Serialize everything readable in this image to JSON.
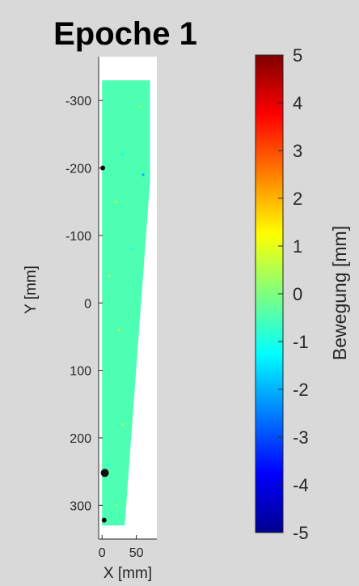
{
  "chart_data": {
    "type": "scatter",
    "title": "Epoche 1",
    "xlabel": "X [mm]",
    "ylabel": "Y [mm]",
    "xlim": [
      -5,
      80
    ],
    "ylim": [
      -365,
      350
    ],
    "y_direction": "reverse",
    "xticks": [
      0,
      50
    ],
    "yticks": [
      -300,
      -200,
      -100,
      0,
      100,
      200,
      300
    ],
    "grid": false,
    "shape_outline": [
      [
        0,
        -330
      ],
      [
        70,
        -330
      ],
      [
        70,
        -180
      ],
      [
        33,
        330
      ],
      [
        0,
        330
      ]
    ],
    "fill_value_mm": -0.5,
    "scattered_points": [
      {
        "x": 55,
        "y": -290,
        "value": 0.3
      },
      {
        "x": 30,
        "y": -220,
        "value": -1.2
      },
      {
        "x": 60,
        "y": -190,
        "value": -2.0
      },
      {
        "x": 20,
        "y": -150,
        "value": 0.5
      },
      {
        "x": 45,
        "y": -80,
        "value": -1.0
      },
      {
        "x": 10,
        "y": -40,
        "value": 0.4
      },
      {
        "x": 25,
        "y": 40,
        "value": 0.6
      },
      {
        "x": 15,
        "y": 120,
        "value": -0.3
      },
      {
        "x": 30,
        "y": 180,
        "value": 0.5
      },
      {
        "x": 8,
        "y": 240,
        "value": -1.1
      },
      {
        "x": 20,
        "y": 300,
        "value": 0.2
      }
    ],
    "black_markers": [
      {
        "x": 4,
        "y": 252
      },
      {
        "x": 3,
        "y": 322
      },
      {
        "x": 1,
        "y": -200
      }
    ],
    "colorbar": {
      "label": "Bewegung [mm]",
      "colormap": "jet",
      "clim": [
        -5,
        5
      ],
      "ticks": [
        5,
        4,
        3,
        2,
        1,
        0,
        -1,
        -2,
        -3,
        -4,
        -5
      ],
      "tick_labels": [
        "5",
        "4",
        "3",
        "2",
        "1",
        "0",
        "-1",
        "-2",
        "-3",
        "-4",
        "-5"
      ]
    }
  }
}
